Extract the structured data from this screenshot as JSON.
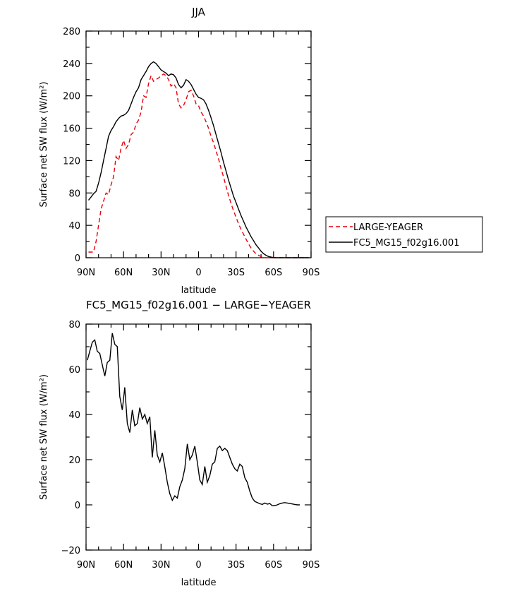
{
  "chart_data": [
    {
      "type": "line",
      "title": "JJA",
      "xlabel": "latitude",
      "ylabel": "Surface net SW flux (W/m²)",
      "xlim": [
        90,
        -90
      ],
      "ylim": [
        0,
        280
      ],
      "xticks": [
        90,
        60,
        30,
        0,
        -30,
        -60,
        -90
      ],
      "xtick_labels": [
        "90N",
        "60N",
        "30N",
        "0",
        "30S",
        "60S",
        "90S"
      ],
      "yticks": [
        0,
        40,
        80,
        120,
        160,
        200,
        240,
        280
      ],
      "ytick_labels": [
        "0",
        "40",
        "80",
        "120",
        "160",
        "200",
        "240",
        "280"
      ],
      "legend_position": "right",
      "series": [
        {
          "name": "LARGE-YEAGER",
          "color": "#e8000b",
          "dash": "dashed",
          "x": [
            88,
            84,
            82,
            80,
            78,
            76,
            74,
            72,
            70,
            68,
            66,
            64,
            62,
            60,
            58,
            56,
            54,
            52,
            50,
            48,
            46,
            44,
            42,
            40,
            38,
            36,
            34,
            32,
            30,
            28,
            26,
            24,
            22,
            20,
            18,
            16,
            14,
            12,
            10,
            8,
            6,
            4,
            2,
            0,
            -2,
            -4,
            -6,
            -8,
            -10,
            -12,
            -14,
            -16,
            -18,
            -20,
            -22,
            -24,
            -26,
            -28,
            -30,
            -32,
            -34,
            -36,
            -38,
            -40,
            -42,
            -44,
            -46,
            -48,
            -50,
            -52,
            -54,
            -56,
            -58,
            -60,
            -62,
            -64,
            -66,
            -68,
            -70,
            -72,
            -74,
            -76,
            -78,
            -80,
            -84,
            -88
          ],
          "y": [
            7,
            7,
            20,
            40,
            60,
            70,
            80,
            78,
            90,
            100,
            125,
            120,
            135,
            145,
            135,
            140,
            152,
            155,
            165,
            170,
            180,
            200,
            198,
            215,
            225,
            218,
            220,
            222,
            225,
            227,
            225,
            220,
            212,
            215,
            210,
            190,
            185,
            188,
            195,
            205,
            207,
            200,
            190,
            188,
            180,
            175,
            168,
            160,
            150,
            142,
            132,
            122,
            110,
            100,
            88,
            77,
            67,
            58,
            50,
            42,
            35,
            29,
            23,
            17,
            12,
            8,
            5,
            3,
            1.5,
            0.5,
            0,
            0,
            0,
            0,
            0,
            0,
            0,
            0,
            0,
            0,
            0,
            0,
            0,
            0,
            0,
            0
          ]
        },
        {
          "name": "FC5_MG15_f02g16.001",
          "color": "#000000",
          "dash": "solid",
          "x": [
            88,
            86,
            84,
            82,
            80,
            78,
            76,
            74,
            72,
            70,
            68,
            66,
            64,
            62,
            60,
            58,
            56,
            54,
            52,
            50,
            48,
            46,
            44,
            42,
            40,
            38,
            36,
            34,
            32,
            30,
            28,
            26,
            24,
            22,
            20,
            18,
            16,
            14,
            12,
            10,
            8,
            6,
            4,
            2,
            0,
            -2,
            -4,
            -6,
            -8,
            -10,
            -12,
            -14,
            -16,
            -18,
            -20,
            -22,
            -24,
            -26,
            -28,
            -30,
            -32,
            -34,
            -36,
            -38,
            -40,
            -42,
            -44,
            -46,
            -48,
            -50,
            -52,
            -54,
            -56,
            -58,
            -60,
            -62,
            -64,
            -66,
            -68,
            -70,
            -72,
            -74,
            -76,
            -78,
            -80,
            -84,
            -88
          ],
          "y": [
            71,
            75,
            79,
            82,
            92,
            105,
            120,
            135,
            150,
            157,
            162,
            168,
            172,
            175,
            176,
            178,
            182,
            190,
            198,
            205,
            210,
            220,
            225,
            230,
            236,
            240,
            242,
            240,
            236,
            232,
            230,
            228,
            225,
            227,
            226,
            222,
            214,
            210,
            213,
            220,
            218,
            214,
            208,
            202,
            198,
            197,
            195,
            190,
            182,
            173,
            163,
            152,
            141,
            130,
            118,
            107,
            96,
            86,
            76,
            68,
            60,
            52,
            45,
            38,
            32,
            26,
            21,
            16,
            12,
            8,
            5,
            3,
            1.5,
            0.8,
            0.3,
            0,
            0,
            0,
            0,
            0,
            0,
            0,
            0,
            0,
            0,
            0,
            0
          ]
        }
      ]
    },
    {
      "type": "line",
      "title": "FC5_MG15_f02g16.001 − LARGE−YEAGER",
      "xlabel": "latitude",
      "ylabel": "Surface net SW flux (W/m²)",
      "xlim": [
        90,
        -90
      ],
      "ylim": [
        -20,
        80
      ],
      "xticks": [
        90,
        60,
        30,
        0,
        -30,
        -60,
        -90
      ],
      "xtick_labels": [
        "90N",
        "60N",
        "30N",
        "0",
        "30S",
        "60S",
        "90S"
      ],
      "yticks": [
        -20,
        0,
        20,
        40,
        60,
        80
      ],
      "ytick_labels": [
        "−20",
        "0",
        "20",
        "40",
        "60",
        "80"
      ],
      "series": [
        {
          "color": "#000000",
          "dash": "solid",
          "x": [
            89,
            87,
            85,
            83,
            81,
            79,
            77,
            75,
            73,
            71,
            69,
            67,
            65,
            63,
            61,
            59,
            57,
            55,
            53,
            51,
            49,
            47,
            45,
            43,
            41,
            39,
            37,
            35,
            33,
            31,
            29,
            27,
            25,
            23,
            21,
            19,
            17,
            15,
            13,
            11,
            9,
            7,
            5,
            3,
            1,
            -1,
            -3,
            -5,
            -7,
            -9,
            -11,
            -13,
            -15,
            -17,
            -19,
            -21,
            -23,
            -25,
            -27,
            -29,
            -31,
            -33,
            -35,
            -37,
            -39,
            -41,
            -43,
            -45,
            -47,
            -49,
            -51,
            -53,
            -55,
            -57,
            -59,
            -61,
            -63,
            -65,
            -67,
            -69,
            -71,
            -73,
            -75,
            -77,
            -79,
            -81
          ],
          "y": [
            64,
            68,
            72,
            73,
            68,
            67,
            62,
            57,
            63,
            64,
            76,
            71,
            70,
            48,
            42,
            52,
            36,
            32,
            42,
            35,
            36,
            43,
            38,
            40,
            36,
            39,
            21,
            33,
            22,
            19,
            23,
            17,
            10,
            5,
            2,
            4,
            3,
            8,
            11,
            16,
            27,
            20,
            22,
            26,
            19,
            11,
            9,
            17,
            10,
            13,
            18,
            19,
            25,
            26,
            24,
            25,
            24,
            21,
            18,
            16,
            15,
            18,
            17,
            12,
            10,
            6,
            3,
            1.5,
            1,
            0.5,
            0.2,
            0.8,
            0.3,
            0.6,
            -0.4,
            -0.3,
            0,
            0.5,
            0.8,
            1,
            0.8,
            0.6,
            0.4,
            0.2,
            0,
            0
          ]
        }
      ]
    }
  ]
}
